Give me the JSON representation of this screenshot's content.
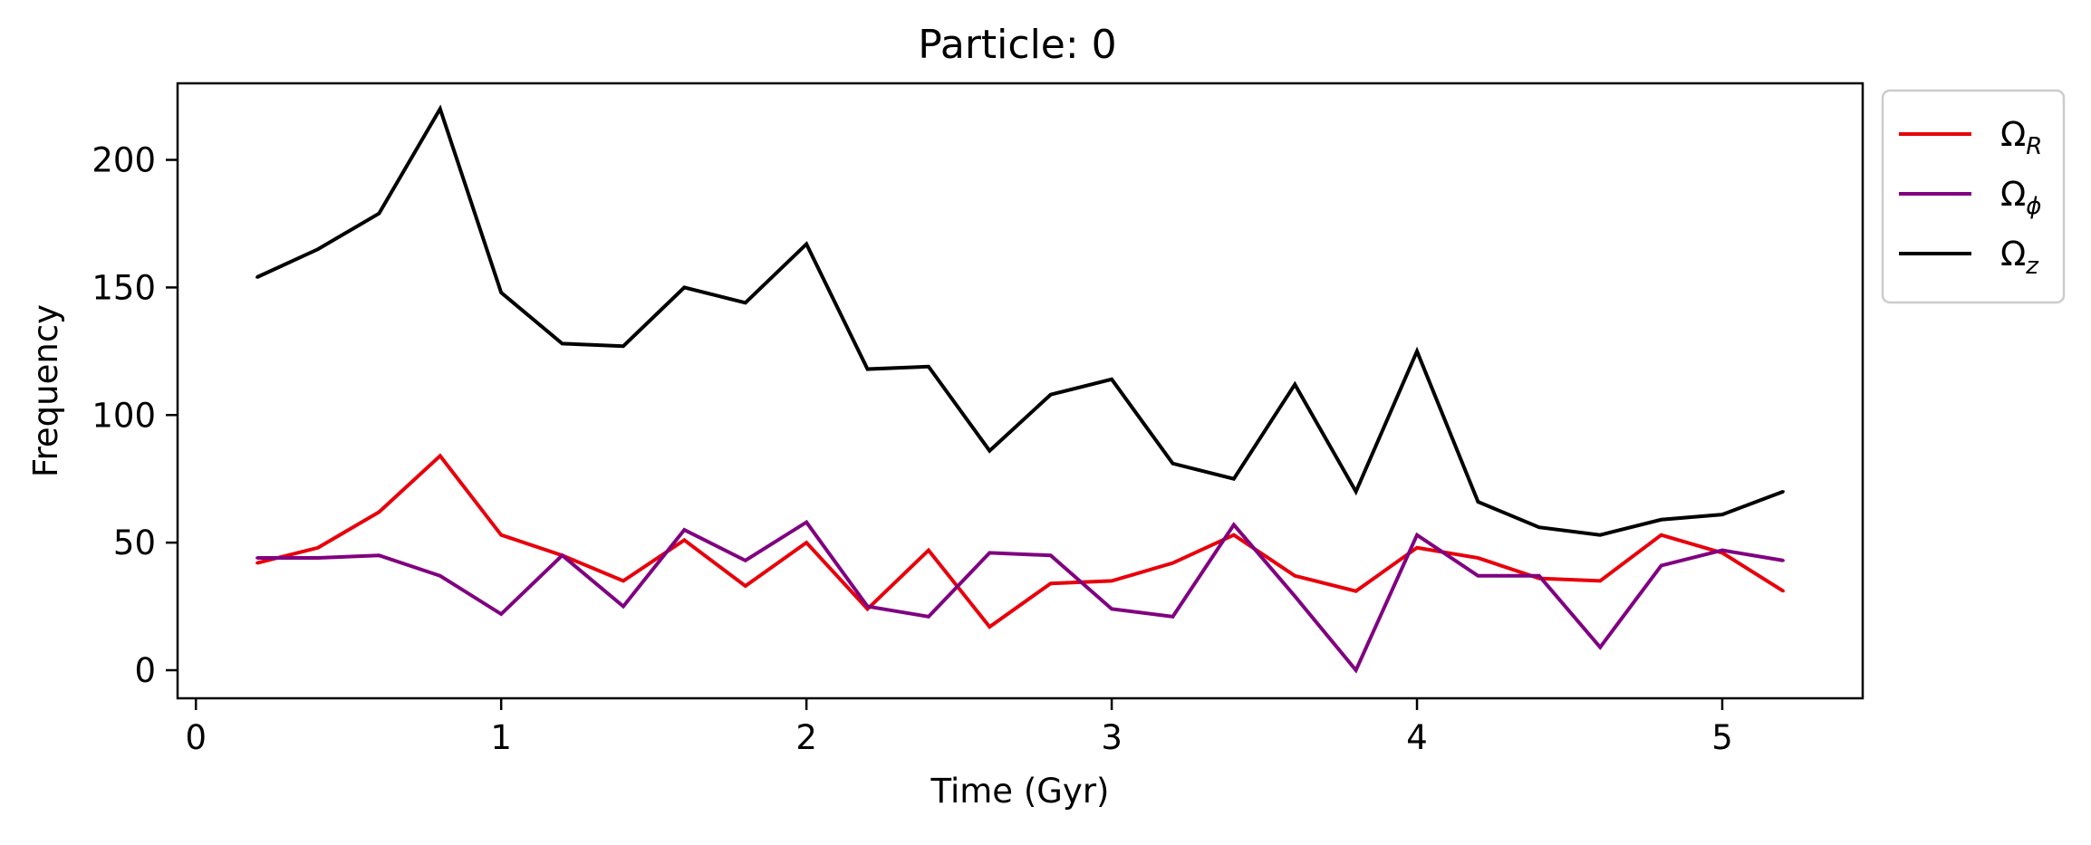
{
  "chart_data": {
    "type": "line",
    "title": "Particle: 0",
    "xlabel": "Time (Gyr)",
    "ylabel": "Frequency",
    "xlim": [
      -0.06,
      5.46
    ],
    "ylim": [
      -11,
      230
    ],
    "xticks": [
      0,
      1,
      2,
      3,
      4,
      5
    ],
    "xtick_labels": [
      "0",
      "1",
      "2",
      "3",
      "4",
      "5"
    ],
    "yticks": [
      0,
      50,
      100,
      150,
      200
    ],
    "ytick_labels": [
      "0",
      "50",
      "100",
      "150",
      "200"
    ],
    "grid": false,
    "legend_position": "outside-top-right",
    "x": [
      0.2,
      0.4,
      0.6,
      0.8,
      1.0,
      1.2,
      1.4,
      1.6,
      1.8,
      2.0,
      2.2,
      2.4,
      2.6,
      2.8,
      3.0,
      3.2,
      3.4,
      3.6,
      3.8,
      4.0,
      4.2,
      4.4,
      4.6,
      4.8,
      5.0,
      5.2
    ],
    "series": [
      {
        "name": "Ω_R",
        "legend_symbol": "Ω",
        "legend_subscript": "R",
        "color": "#e8000b",
        "values": [
          42,
          48,
          62,
          84,
          53,
          45,
          35,
          51,
          33,
          50,
          24,
          47,
          17,
          34,
          35,
          42,
          53,
          37,
          31,
          48,
          44,
          36,
          35,
          53,
          46,
          31
        ]
      },
      {
        "name": "Ω_ϕ",
        "legend_symbol": "Ω",
        "legend_subscript": "ϕ",
        "color": "#800080",
        "values": [
          44,
          44,
          45,
          37,
          22,
          45,
          25,
          55,
          43,
          58,
          25,
          21,
          46,
          45,
          24,
          21,
          57,
          29,
          0,
          53,
          37,
          37,
          9,
          41,
          47,
          43
        ]
      },
      {
        "name": "Ω_z",
        "legend_symbol": "Ω",
        "legend_subscript": "z",
        "color": "#000000",
        "values": [
          154,
          165,
          179,
          220,
          148,
          128,
          127,
          150,
          144,
          167,
          118,
          119,
          86,
          108,
          114,
          81,
          75,
          112,
          70,
          125,
          66,
          56,
          53,
          59,
          61,
          70
        ]
      }
    ]
  }
}
